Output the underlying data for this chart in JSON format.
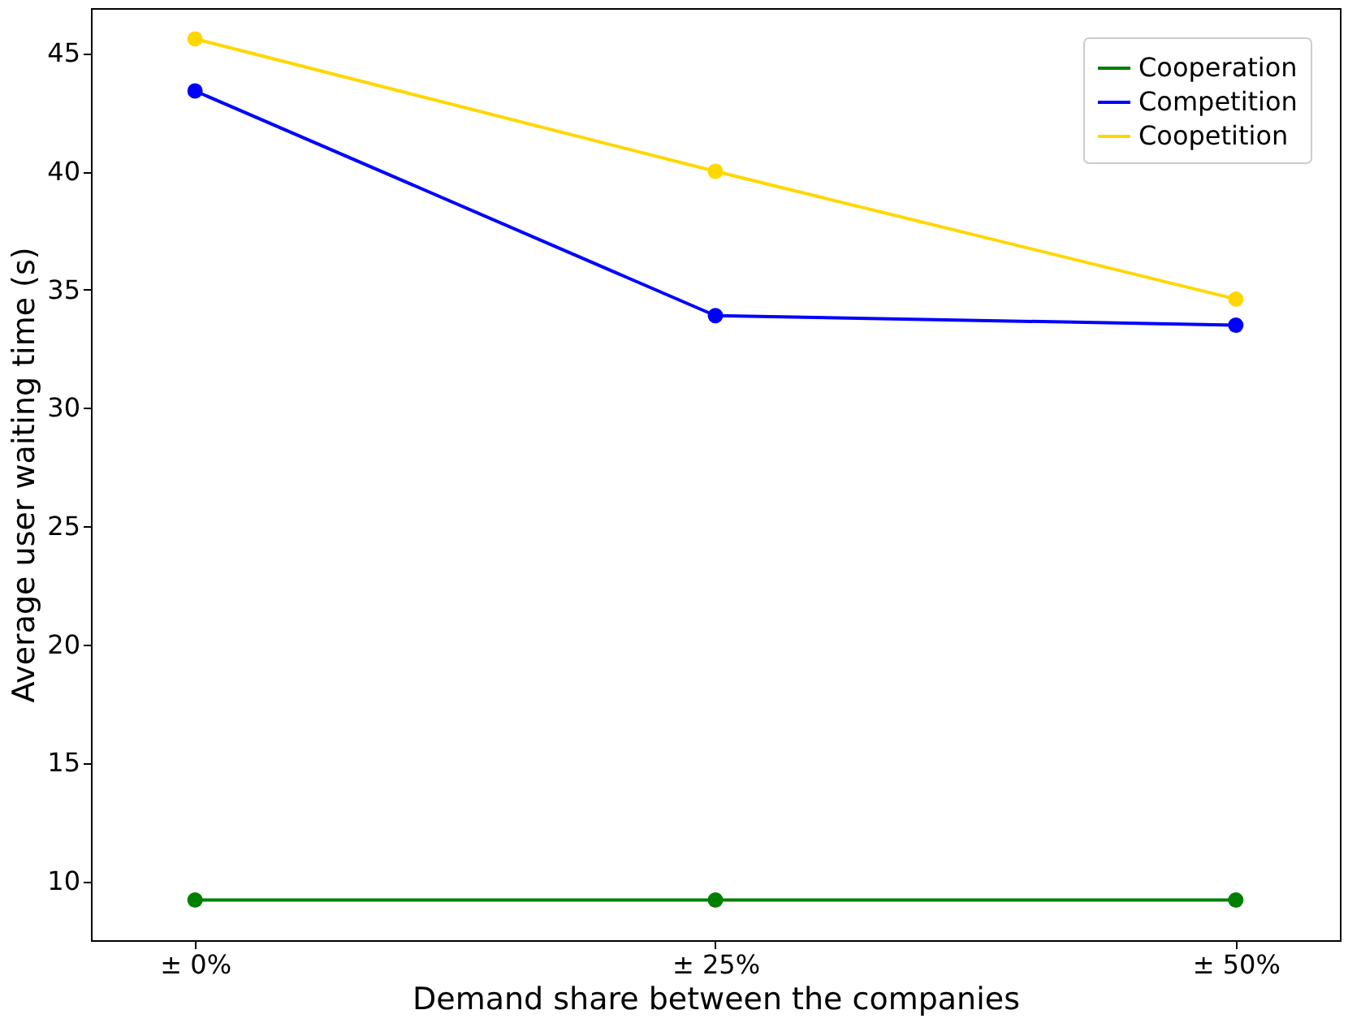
{
  "chart_data": {
    "type": "line",
    "xlabel": "Demand share between the companies",
    "ylabel": "Average user waiting time (s)",
    "categories": [
      "± 0%",
      "± 25%",
      "± 50%"
    ],
    "series": [
      {
        "name": "Cooperation",
        "color": "#008000",
        "values": [
          9.2,
          9.2,
          9.2
        ]
      },
      {
        "name": "Competition",
        "color": "#0000ff",
        "values": [
          43.4,
          33.9,
          33.5
        ]
      },
      {
        "name": "Coopetition",
        "color": "#ffd700",
        "values": [
          45.6,
          40.0,
          34.6
        ]
      }
    ],
    "ylim": [
      7.5,
      46.9
    ],
    "yticks": [
      10,
      15,
      20,
      25,
      30,
      35,
      40,
      45
    ],
    "grid": false,
    "legend": "top right",
    "marker": "circle",
    "line_style": "solid"
  }
}
